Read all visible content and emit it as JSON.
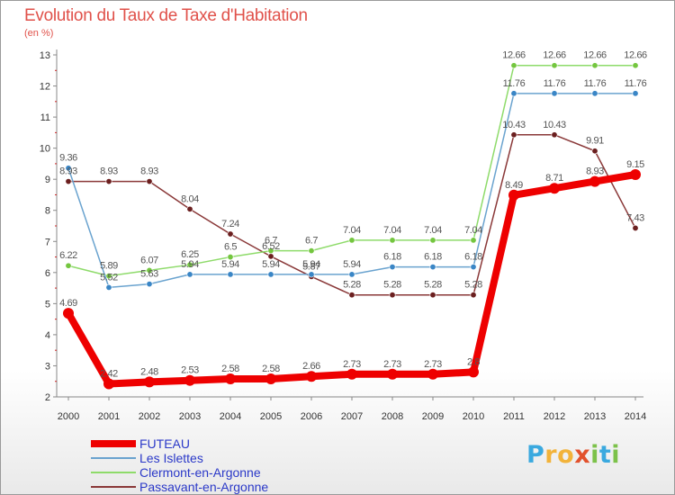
{
  "title": "Evolution du Taux de Taxe d'Habitation",
  "unit": "(en %)",
  "brand": {
    "letters": [
      "P",
      "r",
      "o",
      "x",
      "i",
      "t",
      "i"
    ],
    "colors": [
      "#3aa9df",
      "#f2b33a",
      "#f2b33a",
      "#e2512c",
      "#7cc24a",
      "#3aa9df",
      "#7cc24a"
    ]
  },
  "chart_data": {
    "type": "line",
    "x": [
      "2000",
      "2001",
      "2002",
      "2003",
      "2004",
      "2005",
      "2006",
      "2007",
      "2008",
      "2009",
      "2010",
      "2011",
      "2012",
      "2013",
      "2014"
    ],
    "y_ticks": [
      2,
      3,
      4,
      5,
      6,
      7,
      8,
      9,
      10,
      11,
      12,
      13
    ],
    "ylim": [
      2,
      13
    ],
    "grid": false,
    "legend_position": "bottom-left",
    "series": [
      {
        "name": "FUTEAU",
        "color": "#ee0000",
        "marker": "#ee0000",
        "values": [
          4.69,
          2.42,
          2.48,
          2.53,
          2.58,
          2.58,
          2.66,
          2.73,
          2.73,
          2.73,
          2.8,
          8.49,
          8.71,
          8.93,
          9.15
        ],
        "labels": [
          "4.69",
          "2.42",
          "2.48",
          "2.53",
          "2.58",
          "2.58",
          "2.66",
          "2.73",
          "2.73",
          "2.73",
          "2.8",
          "8.49",
          "8.71",
          "8.93",
          "9.15"
        ]
      },
      {
        "name": "Les Islettes",
        "color": "#6aa3cf",
        "marker": "#3a86c6",
        "values": [
          9.36,
          5.52,
          5.63,
          5.94,
          5.94,
          5.94,
          5.94,
          5.94,
          6.18,
          6.18,
          6.18,
          11.76,
          11.76,
          11.76,
          11.76
        ],
        "labels": [
          "9.36",
          "5.52",
          "5.63",
          "5.94",
          "5.94",
          "5.94",
          "5.94",
          "5.94",
          "6.18",
          "6.18",
          "6.18",
          "11.76",
          "11.76",
          "11.76",
          "11.76"
        ]
      },
      {
        "name": "Clermont-en-Argonne",
        "color": "#8edb6a",
        "marker": "#74c63f",
        "values": [
          6.22,
          5.89,
          6.07,
          6.25,
          6.5,
          6.7,
          6.7,
          7.04,
          7.04,
          7.04,
          7.04,
          12.66,
          12.66,
          12.66,
          12.66
        ],
        "labels": [
          "6.22",
          "5.89",
          "6.07",
          "6.25",
          "6.5",
          "6.7",
          "6.7",
          "7.04",
          "7.04",
          "7.04",
          "7.04",
          "12.66",
          "12.66",
          "12.66",
          "12.66"
        ]
      },
      {
        "name": "Passavant-en-Argonne",
        "color": "#8a3838",
        "marker": "#6b1f1f",
        "values": [
          8.93,
          8.93,
          8.93,
          8.04,
          7.24,
          6.52,
          5.87,
          5.28,
          5.28,
          5.28,
          5.28,
          10.43,
          10.43,
          9.91,
          7.43
        ],
        "labels": [
          "8.93",
          "8.93",
          "8.93",
          "8.04",
          "7.24",
          "6.52",
          "5.87",
          "5.28",
          "5.28",
          "5.28",
          "5.28",
          "10.43",
          "10.43",
          "9.91",
          "7.43"
        ]
      }
    ]
  }
}
